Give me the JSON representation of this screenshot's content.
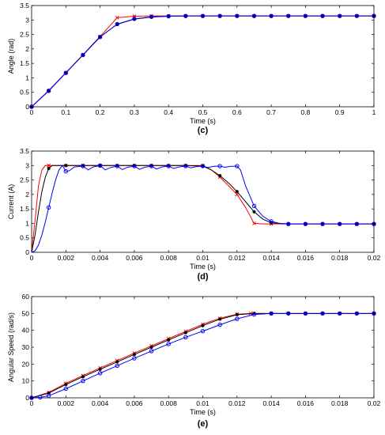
{
  "chart_data": [
    {
      "type": "line",
      "panel_label": "(c)",
      "xlabel": "Time (s)",
      "ylabel": "Angle (rad)",
      "xlim": [
        0,
        1
      ],
      "ylim": [
        0,
        3.5
      ],
      "xticks": [
        0,
        0.1,
        0.2,
        0.3,
        0.4,
        0.5,
        0.6,
        0.7,
        0.8,
        0.9,
        1
      ],
      "yticks": [
        0,
        0.5,
        1,
        1.5,
        2,
        2.5,
        3,
        3.5
      ],
      "xtick_labels": [
        "0",
        "0.1",
        "0.2",
        "0.3",
        "0.4",
        "0.5",
        "0.6",
        "0.7",
        "0.8",
        "0.9",
        "1"
      ],
      "ytick_labels": [
        "0",
        "0.5",
        "1",
        "1.5",
        "2",
        "2.5",
        "3",
        "3.5"
      ],
      "grid": false,
      "series": [
        {
          "color": "#ff0000",
          "marker": "x",
          "x": [
            0,
            0.05,
            0.1,
            0.15,
            0.2,
            0.25,
            0.3,
            0.35,
            0.4,
            0.45,
            0.5,
            0.55,
            0.6,
            0.65,
            0.7,
            0.75,
            0.8,
            0.85,
            0.9,
            0.95,
            1
          ],
          "y": [
            0,
            0.56,
            1.18,
            1.8,
            2.43,
            3.08,
            3.13,
            3.14,
            3.14,
            3.14,
            3.14,
            3.14,
            3.14,
            3.14,
            3.14,
            3.14,
            3.14,
            3.14,
            3.14,
            3.14,
            3.14
          ]
        },
        {
          "color": "#000000",
          "marker": "*",
          "x": [
            0,
            0.05,
            0.1,
            0.15,
            0.2,
            0.25,
            0.3,
            0.35,
            0.4,
            0.45,
            0.5,
            0.55,
            0.6,
            0.65,
            0.7,
            0.75,
            0.8,
            0.85,
            0.9,
            0.95,
            1
          ],
          "y": [
            0,
            0.55,
            1.17,
            1.79,
            2.42,
            2.85,
            3.03,
            3.1,
            3.13,
            3.14,
            3.14,
            3.14,
            3.14,
            3.14,
            3.14,
            3.14,
            3.14,
            3.14,
            3.14,
            3.14,
            3.14
          ]
        },
        {
          "color": "#0000ff",
          "marker": "o",
          "x": [
            0,
            0.05,
            0.1,
            0.15,
            0.2,
            0.25,
            0.3,
            0.35,
            0.4,
            0.45,
            0.5,
            0.55,
            0.6,
            0.65,
            0.7,
            0.75,
            0.8,
            0.85,
            0.9,
            0.95,
            1
          ],
          "y": [
            0,
            0.55,
            1.17,
            1.79,
            2.41,
            2.86,
            3.04,
            3.11,
            3.13,
            3.14,
            3.14,
            3.14,
            3.14,
            3.14,
            3.14,
            3.14,
            3.14,
            3.14,
            3.14,
            3.14,
            3.14
          ]
        }
      ]
    },
    {
      "type": "line",
      "panel_label": "(d)",
      "xlabel": "Time (s)",
      "ylabel": "Current (A)",
      "xlim": [
        0,
        0.02
      ],
      "ylim": [
        0,
        3.5
      ],
      "xticks": [
        0,
        0.002,
        0.004,
        0.006,
        0.008,
        0.01,
        0.012,
        0.014,
        0.016,
        0.018,
        0.02
      ],
      "yticks": [
        0,
        0.5,
        1,
        1.5,
        2,
        2.5,
        3,
        3.5
      ],
      "xtick_labels": [
        "0",
        "0.002",
        "0.004",
        "0.006",
        "0.008",
        "0.01",
        "0.012",
        "0.014",
        "0.016",
        "0.018",
        "0.02"
      ],
      "ytick_labels": [
        "0",
        "0.5",
        "1",
        "1.5",
        "2",
        "2.5",
        "3",
        "3.5"
      ],
      "grid": false,
      "series": [
        {
          "color": "#ff0000",
          "marker": "x",
          "x": [
            0,
            0.0002,
            0.0004,
            0.0006,
            0.0008,
            0.001,
            0.002,
            0.003,
            0.004,
            0.005,
            0.006,
            0.007,
            0.008,
            0.009,
            0.01,
            0.0105,
            0.011,
            0.0115,
            0.012,
            0.0125,
            0.013,
            0.0135,
            0.014,
            0.015,
            0.016,
            0.017,
            0.018,
            0.019,
            0.02
          ],
          "y": [
            0,
            1.1,
            2.3,
            2.85,
            3.0,
            3.0,
            3.0,
            3.0,
            3.0,
            3.0,
            3.0,
            3.0,
            3.0,
            3.0,
            3.0,
            2.85,
            2.6,
            2.3,
            2.0,
            1.55,
            1.0,
            0.98,
            0.98,
            0.98,
            0.98,
            0.98,
            0.98,
            0.98,
            0.98
          ],
          "markers_x": [
            0.001,
            0.002,
            0.003,
            0.004,
            0.005,
            0.006,
            0.007,
            0.008,
            0.009,
            0.01,
            0.011,
            0.012,
            0.013,
            0.014,
            0.015,
            0.016,
            0.017,
            0.018,
            0.019,
            0.02
          ]
        },
        {
          "color": "#000000",
          "marker": "*",
          "x": [
            0,
            0.0002,
            0.0004,
            0.0006,
            0.0008,
            0.001,
            0.0012,
            0.0015,
            0.002,
            0.003,
            0.004,
            0.005,
            0.006,
            0.007,
            0.008,
            0.009,
            0.01,
            0.0105,
            0.011,
            0.0115,
            0.012,
            0.0125,
            0.013,
            0.0135,
            0.014,
            0.015,
            0.016,
            0.017,
            0.018,
            0.019,
            0.02
          ],
          "y": [
            0,
            0.6,
            1.4,
            2.1,
            2.6,
            2.9,
            3.0,
            3.0,
            3.0,
            3.0,
            3.0,
            3.0,
            3.0,
            3.0,
            3.0,
            3.0,
            2.98,
            2.85,
            2.65,
            2.4,
            2.1,
            1.75,
            1.4,
            1.15,
            1.02,
            0.98,
            0.98,
            0.98,
            0.98,
            0.98,
            0.98
          ],
          "markers_x": [
            0.001,
            0.002,
            0.003,
            0.004,
            0.005,
            0.006,
            0.007,
            0.008,
            0.009,
            0.01,
            0.011,
            0.012,
            0.013,
            0.014,
            0.015,
            0.016,
            0.017,
            0.018,
            0.019,
            0.02
          ]
        },
        {
          "color": "#0000ff",
          "marker": "o",
          "x": [
            0,
            0.0002,
            0.0004,
            0.0006,
            0.0008,
            0.001,
            0.0012,
            0.0014,
            0.0016,
            0.0018,
            0.002,
            0.0022,
            0.0025,
            0.003,
            0.0033,
            0.0036,
            0.004,
            0.0043,
            0.0046,
            0.005,
            0.0053,
            0.0056,
            0.006,
            0.0063,
            0.0066,
            0.007,
            0.0073,
            0.0076,
            0.008,
            0.0083,
            0.0086,
            0.009,
            0.0093,
            0.0096,
            0.01,
            0.0103,
            0.0106,
            0.011,
            0.0113,
            0.0116,
            0.012,
            0.0122,
            0.0125,
            0.013,
            0.0135,
            0.014,
            0.0145,
            0.015,
            0.016,
            0.017,
            0.018,
            0.019,
            0.02
          ],
          "y": [
            0,
            0.05,
            0.25,
            0.6,
            1.05,
            1.55,
            2.05,
            2.5,
            2.85,
            3.0,
            2.8,
            2.82,
            2.95,
            2.98,
            2.85,
            2.95,
            3.0,
            2.85,
            2.93,
            2.98,
            2.86,
            2.94,
            2.98,
            2.87,
            2.94,
            2.98,
            2.88,
            2.95,
            2.98,
            2.9,
            2.95,
            2.98,
            2.92,
            2.96,
            2.98,
            2.93,
            2.97,
            2.98,
            2.94,
            2.97,
            2.98,
            2.85,
            2.3,
            1.6,
            1.25,
            1.07,
            1.0,
            0.98,
            0.98,
            0.98,
            0.98,
            0.98,
            0.98
          ],
          "markers_x": [
            0.001,
            0.002,
            0.003,
            0.004,
            0.005,
            0.006,
            0.007,
            0.008,
            0.009,
            0.01,
            0.011,
            0.012,
            0.013,
            0.014,
            0.015,
            0.016,
            0.017,
            0.018,
            0.019,
            0.02
          ]
        }
      ]
    },
    {
      "type": "line",
      "panel_label": "(e)",
      "xlabel": "Time (s)",
      "ylabel": "Angular Speed (rad/s)",
      "xlim": [
        0,
        0.02
      ],
      "ylim": [
        0,
        60
      ],
      "xticks": [
        0,
        0.002,
        0.004,
        0.006,
        0.008,
        0.01,
        0.012,
        0.014,
        0.016,
        0.018,
        0.02
      ],
      "yticks": [
        0,
        10,
        20,
        30,
        40,
        50,
        60
      ],
      "xtick_labels": [
        "0",
        "0.002",
        "0.004",
        "0.006",
        "0.008",
        "0.01",
        "0.012",
        "0.014",
        "0.016",
        "0.018",
        "0.02"
      ],
      "ytick_labels": [
        "0",
        "10",
        "20",
        "30",
        "40",
        "50",
        "60"
      ],
      "grid": false,
      "series": [
        {
          "color": "#ff0000",
          "marker": "x",
          "x": [
            0,
            0.001,
            0.002,
            0.003,
            0.004,
            0.005,
            0.006,
            0.007,
            0.008,
            0.009,
            0.01,
            0.011,
            0.012,
            0.0128,
            0.013,
            0.014,
            0.015,
            0.016,
            0.017,
            0.018,
            0.019,
            0.02
          ],
          "y": [
            0,
            3.2,
            8.6,
            13.2,
            17.7,
            22.1,
            26.5,
            30.8,
            35.1,
            39.4,
            43.6,
            47.2,
            49.6,
            50,
            50,
            50,
            50,
            50,
            50,
            50,
            50,
            50
          ]
        },
        {
          "color": "#000000",
          "marker": "*",
          "x": [
            0,
            0.001,
            0.002,
            0.003,
            0.004,
            0.005,
            0.006,
            0.007,
            0.008,
            0.009,
            0.01,
            0.011,
            0.012,
            0.013,
            0.014,
            0.015,
            0.016,
            0.017,
            0.018,
            0.019,
            0.02
          ],
          "y": [
            0,
            2.8,
            7.9,
            12.5,
            16.9,
            21.3,
            25.7,
            30.0,
            34.3,
            38.6,
            42.8,
            46.6,
            49.3,
            50,
            50,
            50,
            50,
            50,
            50,
            50,
            50
          ]
        },
        {
          "color": "#0000ff",
          "marker": "o",
          "x": [
            0,
            0.0005,
            0.001,
            0.002,
            0.003,
            0.004,
            0.005,
            0.006,
            0.007,
            0.008,
            0.009,
            0.01,
            0.011,
            0.012,
            0.013,
            0.014,
            0.015,
            0.016,
            0.017,
            0.018,
            0.019,
            0.02
          ],
          "y": [
            0,
            0.3,
            1.2,
            5.4,
            10.0,
            14.6,
            19.0,
            23.4,
            27.7,
            31.9,
            35.9,
            39.5,
            43.3,
            46.8,
            49.4,
            50,
            50,
            50,
            50,
            50,
            50,
            50
          ]
        }
      ]
    }
  ]
}
